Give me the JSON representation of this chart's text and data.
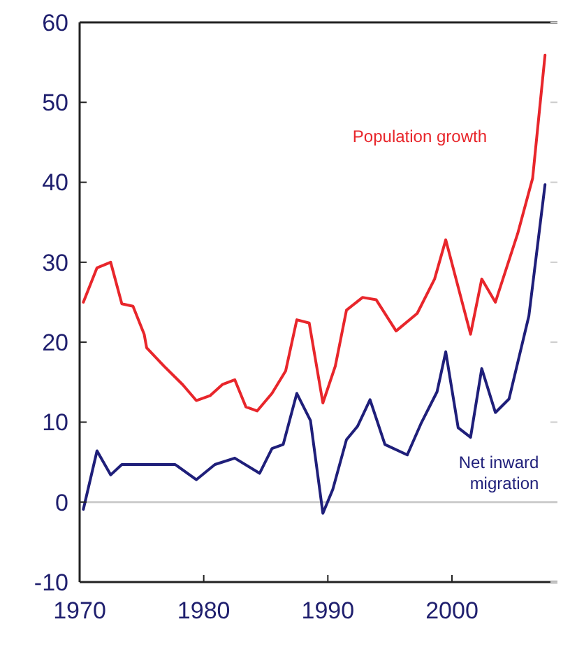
{
  "chart_data": {
    "type": "line",
    "xlim": [
      1970,
      2008.5
    ],
    "xticks": [
      1970,
      1980,
      1990,
      2000
    ],
    "ylim": [
      -10,
      60
    ],
    "yticks": [
      -10,
      0,
      10,
      20,
      30,
      40,
      50,
      60
    ],
    "ref_lines": [
      {
        "axis": "y",
        "value": 0,
        "color": "#cccccc"
      }
    ],
    "series": [
      {
        "name": "Population growth",
        "color": "#e8262b",
        "x": [
          1970.3,
          1971.4,
          1972.5,
          1973.4,
          1974.3,
          1975.2,
          1975.4,
          1976.8,
          1978.3,
          1979.4,
          1980.5,
          1981.5,
          1982.5,
          1983.4,
          1984.3,
          1985.5,
          1986.6,
          1987.5,
          1988.5,
          1989.6,
          1990.6,
          1991.5,
          1992.8,
          1993.9,
          1995.5,
          1997.2,
          1998.6,
          1999.5,
          2001.5,
          2002.4,
          2003.5,
          2005.3,
          2006.5,
          2007.5
        ],
        "values": [
          25,
          29.3,
          30,
          24.8,
          24.5,
          21,
          19.3,
          17,
          14.7,
          12.7,
          13.3,
          14.7,
          15.3,
          11.9,
          11.4,
          13.6,
          16.4,
          22.8,
          22.4,
          12.4,
          17,
          24,
          25.6,
          25.3,
          21.4,
          23.6,
          27.9,
          32.8,
          21,
          27.9,
          25,
          33.6,
          40.5,
          55.9
        ]
      },
      {
        "name": "Net inward migration",
        "color": "#1f1f7a",
        "x": [
          1970.3,
          1971.4,
          1972.5,
          1973.4,
          1974.3,
          1977.7,
          1979.4,
          1980.9,
          1982.5,
          1984.5,
          1985.5,
          1986.4,
          1987.5,
          1988.6,
          1989.6,
          1990.4,
          1991.5,
          1992.4,
          1993.4,
          1994.6,
          1996.4,
          1997.5,
          1998.8,
          1999.5,
          2000.5,
          2001.5,
          2002.4,
          2003.5,
          2004.6,
          2006.2,
          2007.5
        ],
        "values": [
          -0.9,
          6.4,
          3.4,
          4.7,
          4.7,
          4.7,
          2.8,
          4.7,
          5.5,
          3.6,
          6.7,
          7.2,
          13.6,
          10.2,
          -1.4,
          1.6,
          7.8,
          9.5,
          12.8,
          7.2,
          5.9,
          9.8,
          13.8,
          18.8,
          9.3,
          8.1,
          16.7,
          11.2,
          12.9,
          23.3,
          39.7
        ]
      }
    ]
  }
}
